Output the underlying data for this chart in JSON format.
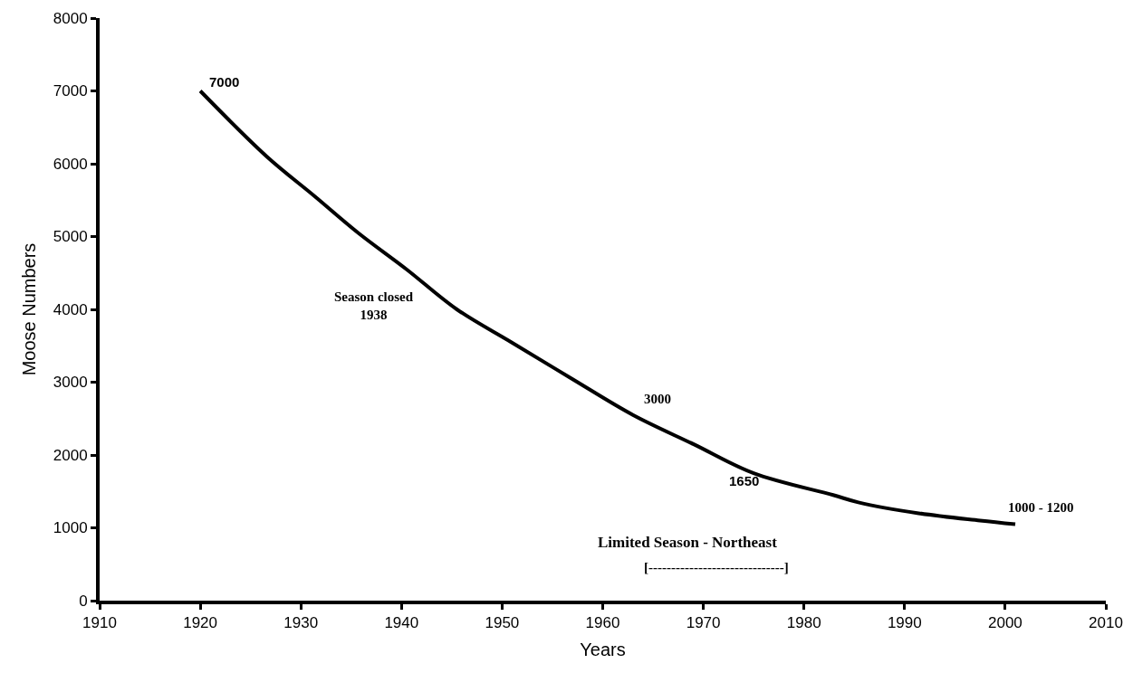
{
  "chart_data": {
    "type": "line",
    "xlabel": "Years",
    "ylabel": "Moose Numbers",
    "x": [
      1920,
      1926.6,
      1931.4,
      1935.7,
      1940.5,
      1945.5,
      1950.9,
      1956.9,
      1963,
      1969,
      1975,
      1982.9,
      1985.4,
      1991.4,
      1997.5,
      2001
    ],
    "series": [
      {
        "color": "#000000",
        "values": [
          7000,
          6100,
          5550,
          5050,
          4550,
          4000,
          3550,
          3050,
          2550,
          2150,
          1750,
          1450,
          1350,
          1200,
          1100,
          1050
        ]
      }
    ],
    "xlim": [
      1910,
      2010
    ],
    "xticks": [
      1910,
      1920,
      1930,
      1940,
      1950,
      1960,
      1970,
      1980,
      1990,
      2000,
      2010
    ],
    "ylim": [
      0,
      8000
    ],
    "yticks": [
      0,
      1000,
      2000,
      3000,
      4000,
      5000,
      6000,
      7000,
      8000
    ],
    "marker": "none",
    "line_style": "solid",
    "annotations": [
      {
        "text": "7000",
        "x": 1920,
        "y": 7000
      },
      "Season closed\n1938",
      {
        "text": "3000",
        "x": 1963,
        "y": 2550
      },
      {
        "text": "1650",
        "x": 1974,
        "y": 1800
      },
      {
        "text": "1000 - 1200",
        "x": 2001,
        "y": 1057
      },
      "Limited Season - Northeast",
      "[------------------------------]"
    ]
  }
}
